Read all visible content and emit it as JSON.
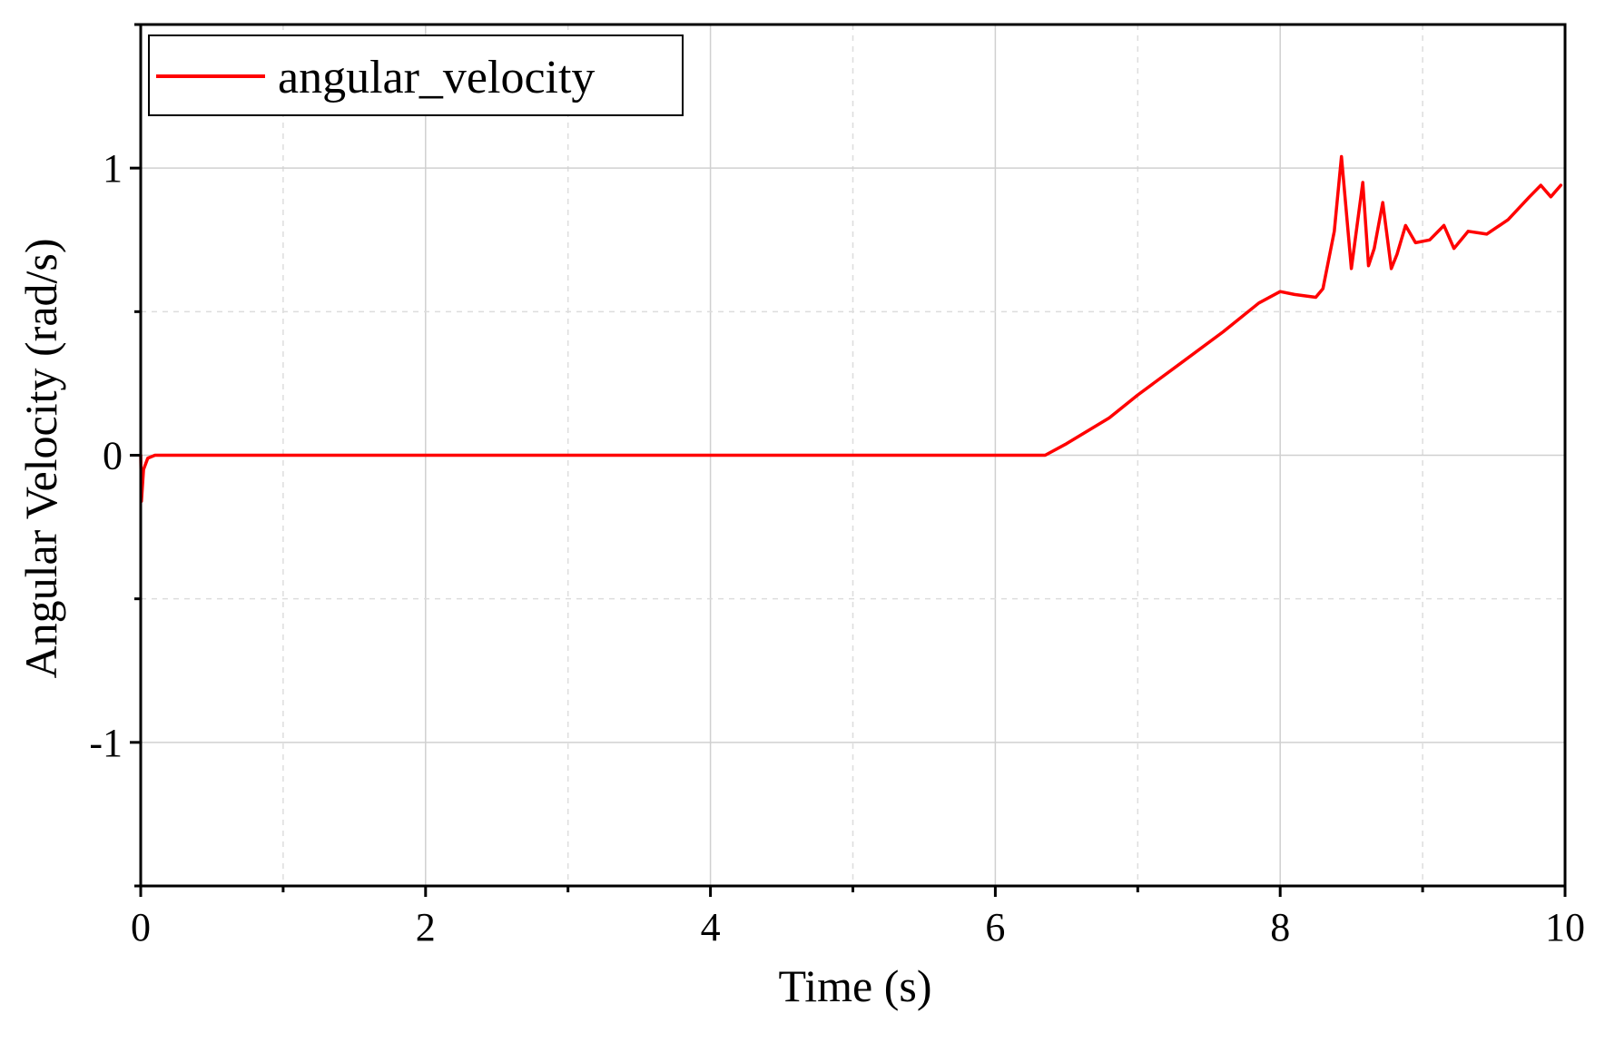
{
  "chart_data": {
    "type": "line",
    "title": "",
    "xlabel": "Time (s)",
    "ylabel": "Angular Velocity (rad/s)",
    "xlim": [
      0,
      10
    ],
    "ylim": [
      -1.5,
      1.5
    ],
    "x_major_ticks": [
      0,
      2,
      4,
      6,
      8,
      10
    ],
    "x_tick_labels": [
      "0",
      "2",
      "4",
      "6",
      "8",
      "10"
    ],
    "y_major_ticks": [
      -1,
      0,
      1
    ],
    "y_tick_labels": [
      "-1",
      "0",
      "1"
    ],
    "grid": true,
    "legend_position": "top-left",
    "series": [
      {
        "name": "angular_velocity",
        "color": "#ff0000",
        "x": [
          0,
          0.005,
          0.02,
          0.05,
          0.1,
          0.3,
          0.6,
          1.0,
          2.0,
          3.0,
          4.0,
          5.0,
          6.0,
          6.35,
          6.5,
          6.8,
          7.0,
          7.3,
          7.6,
          7.85,
          8.0,
          8.1,
          8.25,
          8.3,
          8.38,
          8.43,
          8.5,
          8.54,
          8.58,
          8.62,
          8.66,
          8.72,
          8.78,
          8.82,
          8.88,
          8.95,
          9.05,
          9.15,
          9.22,
          9.32,
          9.45,
          9.6,
          9.75,
          9.83,
          9.9,
          9.97
        ],
        "y": [
          0.0,
          -0.16,
          -0.05,
          -0.01,
          0.0,
          0.0,
          0.0,
          0.0,
          0.0,
          0.0,
          0.0,
          0.0,
          0.0,
          0.0,
          0.04,
          0.13,
          0.21,
          0.32,
          0.43,
          0.53,
          0.57,
          0.56,
          0.55,
          0.58,
          0.78,
          1.04,
          0.65,
          0.8,
          0.95,
          0.66,
          0.72,
          0.88,
          0.65,
          0.7,
          0.8,
          0.74,
          0.75,
          0.8,
          0.72,
          0.78,
          0.77,
          0.82,
          0.9,
          0.94,
          0.9,
          0.94
        ]
      }
    ]
  }
}
